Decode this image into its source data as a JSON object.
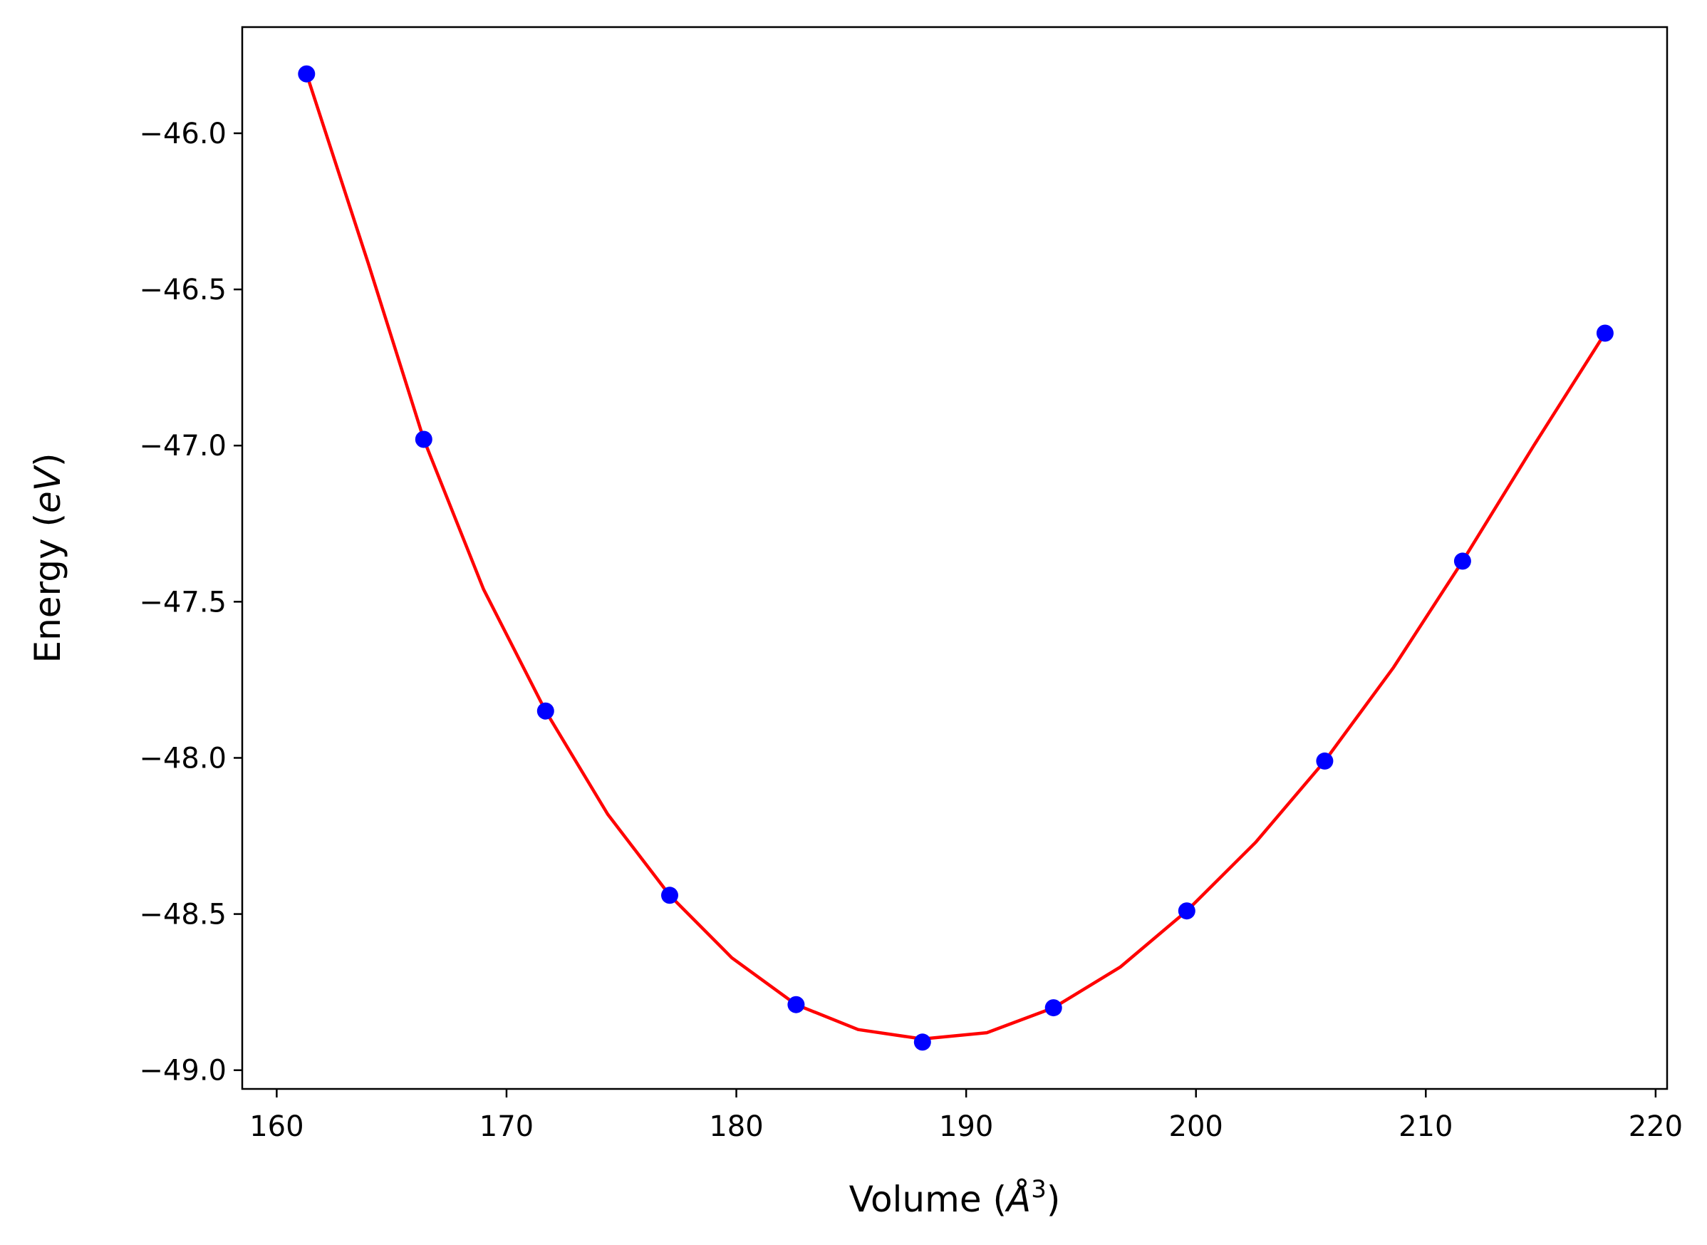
{
  "chart_data": {
    "type": "scatter",
    "title": "",
    "xlabel": "Volume (",
    "xlabel_unit": "Å",
    "xlabel_exp": "3",
    "xlabel_close": ")",
    "ylabel": "Energy (",
    "ylabel_unit": "eV",
    "ylabel_close": ")",
    "xlim": [
      158.5,
      220.5
    ],
    "ylim": [
      -49.06,
      -45.66
    ],
    "xticks": [
      160,
      170,
      180,
      190,
      200,
      210,
      220
    ],
    "xtick_labels": [
      "160",
      "170",
      "180",
      "190",
      "200",
      "210",
      "220"
    ],
    "yticks": [
      -46.0,
      -46.5,
      -47.0,
      -47.5,
      -48.0,
      -48.5,
      -49.0
    ],
    "ytick_labels": [
      "−46.0",
      "−46.5",
      "−47.0",
      "−47.5",
      "−48.0",
      "−48.5",
      "−49.0"
    ],
    "grid": false,
    "series": [
      {
        "kind": "points",
        "color": "#0000ff",
        "x": [
          161.3,
          166.4,
          171.7,
          177.1,
          182.6,
          188.1,
          193.8,
          199.6,
          205.6,
          211.6,
          217.8
        ],
        "y": [
          -45.81,
          -46.98,
          -47.85,
          -48.44,
          -48.79,
          -48.91,
          -48.8,
          -48.49,
          -48.01,
          -47.37,
          -46.64
        ]
      },
      {
        "kind": "fit",
        "color": "#ff0000",
        "x": [
          161.3,
          164.0,
          166.4,
          169.0,
          171.7,
          174.4,
          177.1,
          179.8,
          182.6,
          185.3,
          188.1,
          190.9,
          193.8,
          196.7,
          199.6,
          202.6,
          205.6,
          208.6,
          211.6,
          214.7,
          217.8
        ],
        "y": [
          -45.81,
          -46.42,
          -46.98,
          -47.46,
          -47.85,
          -48.18,
          -48.44,
          -48.64,
          -48.79,
          -48.87,
          -48.9,
          -48.88,
          -48.8,
          -48.67,
          -48.49,
          -48.27,
          -48.01,
          -47.71,
          -47.37,
          -47.0,
          -46.64
        ]
      }
    ]
  }
}
